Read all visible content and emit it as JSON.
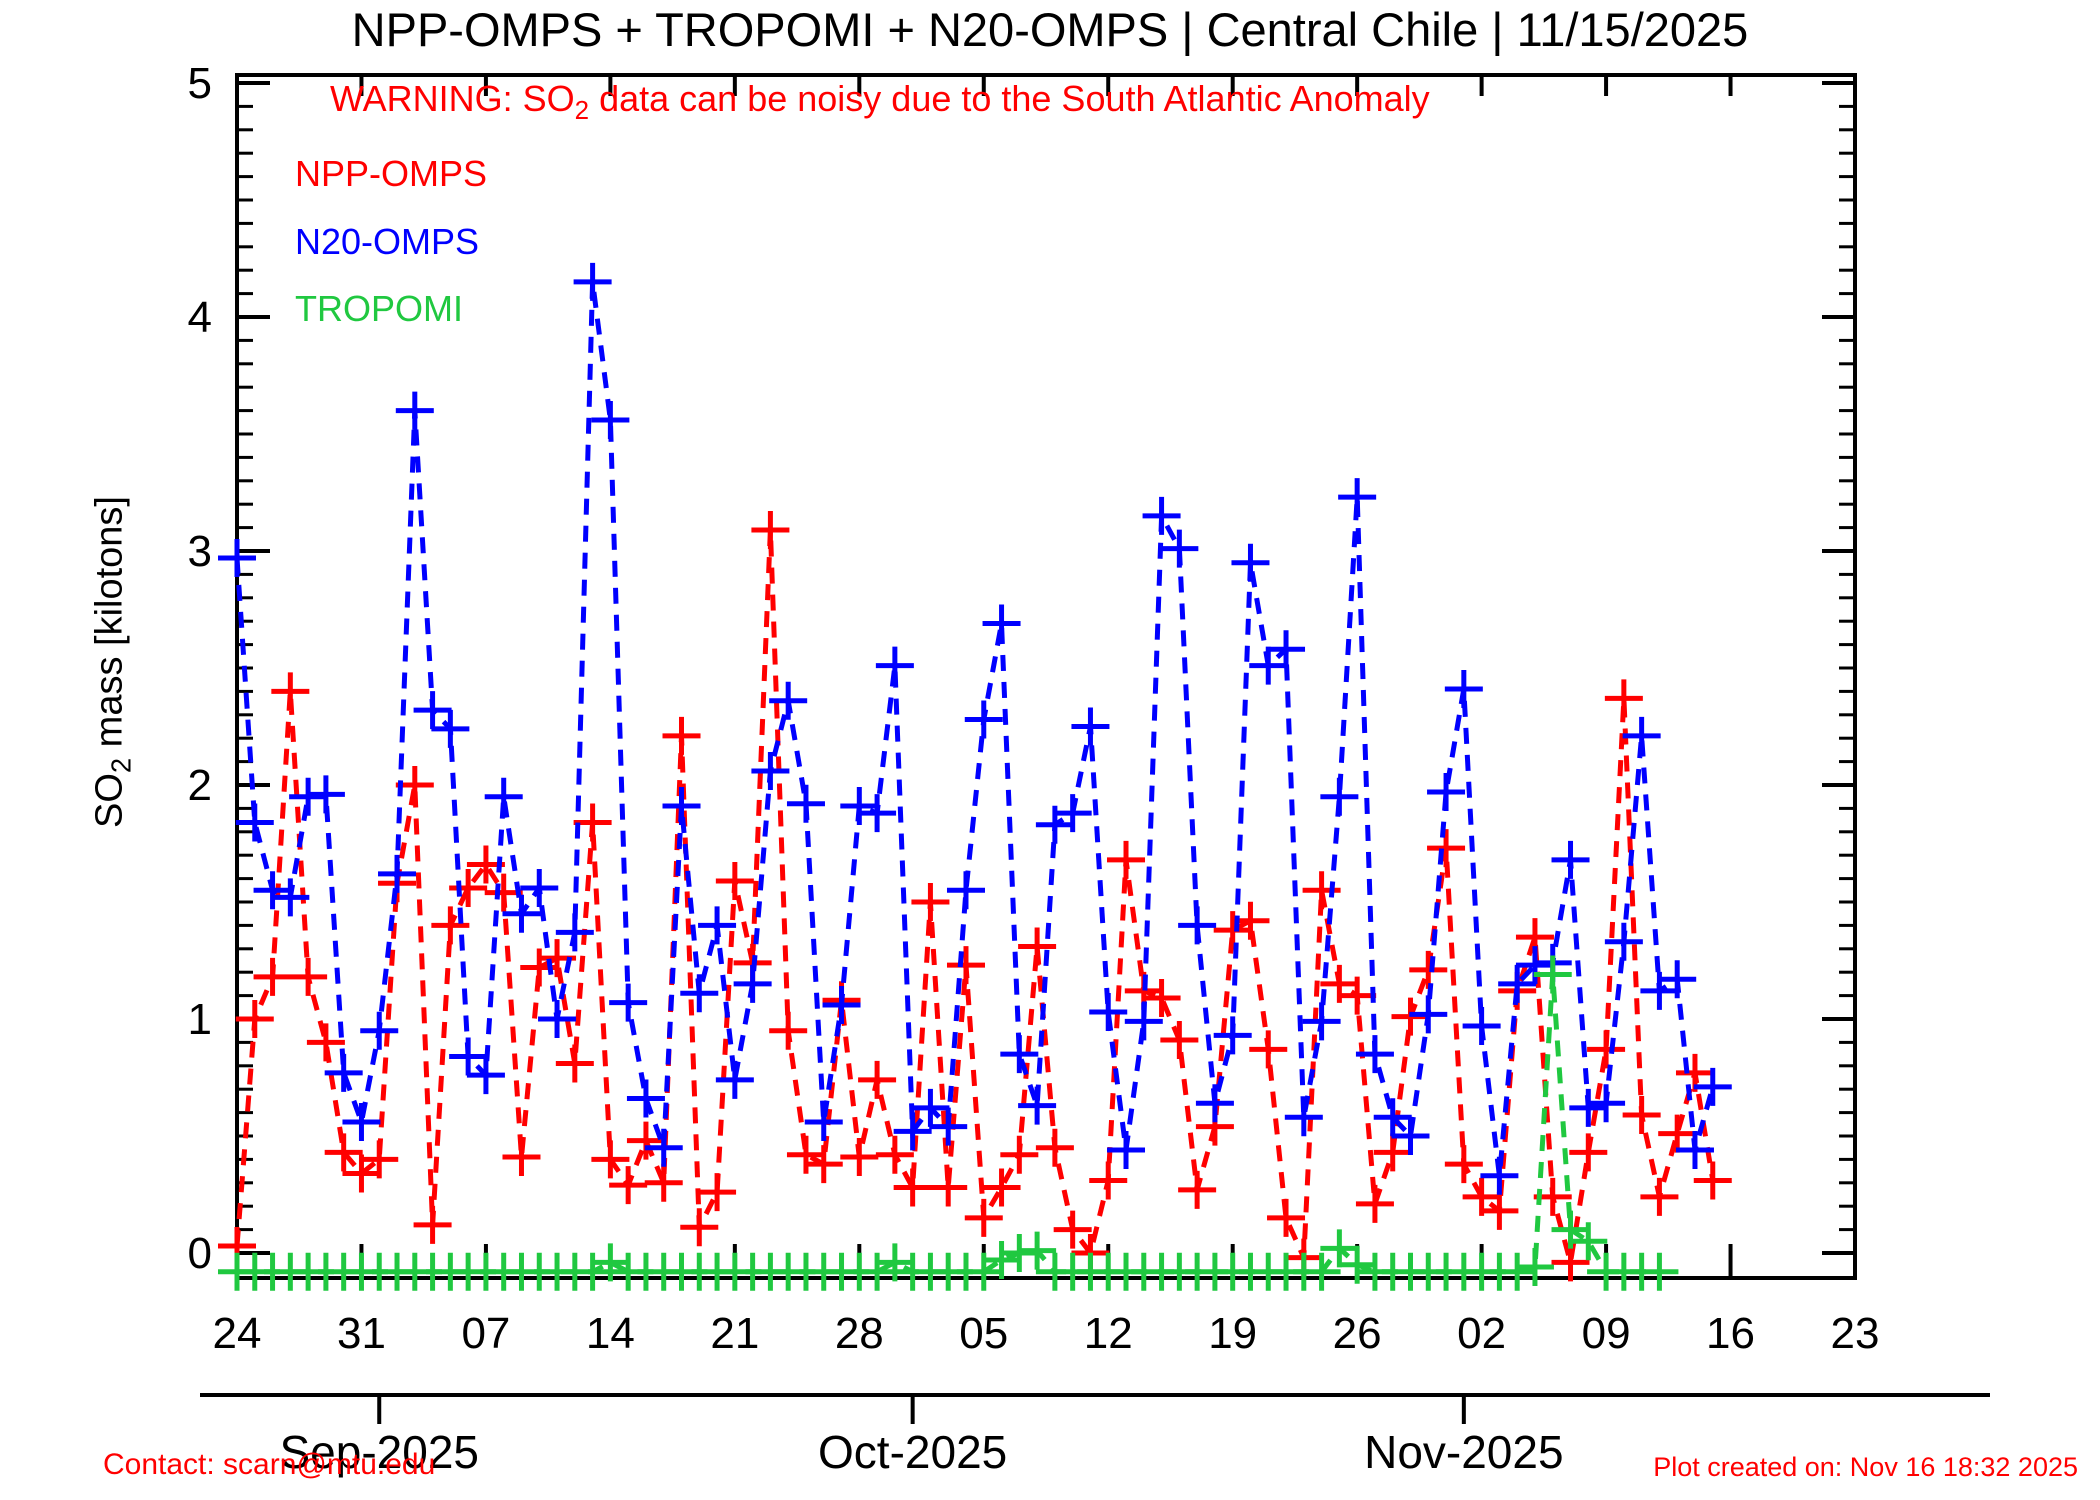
{
  "title": "NPP-OMPS + TROPOMI + N20-OMPS | Central Chile | 11/15/2025",
  "warning": {
    "pre": "WARNING: SO",
    "sub": "2",
    "post": " data can be noisy due to the South Atlantic Anomaly",
    "color": "#FF0000"
  },
  "legend": {
    "npp": {
      "label": "NPP-OMPS",
      "color": "#FF0000"
    },
    "n20": {
      "label": "N20-OMPS",
      "color": "#0000FF"
    },
    "tropomi": {
      "label": "TROPOMI",
      "color": "#20C840"
    }
  },
  "y_axis": {
    "label_pre": "SO",
    "label_sub": "2",
    "label_post": " mass [kilotons]",
    "min": 0,
    "max": 5,
    "major_step": 1,
    "minor_step": 0.1,
    "tick_labels": [
      "0",
      "1",
      "2",
      "3",
      "4",
      "5"
    ]
  },
  "x_axis": {
    "total_days": 91,
    "start_date": "2025-08-24",
    "major_ticks": [
      {
        "day": 0,
        "label": "24"
      },
      {
        "day": 7,
        "label": "31"
      },
      {
        "day": 14,
        "label": "07"
      },
      {
        "day": 21,
        "label": "14"
      },
      {
        "day": 28,
        "label": "21"
      },
      {
        "day": 35,
        "label": "28"
      },
      {
        "day": 42,
        "label": "05"
      },
      {
        "day": 49,
        "label": "12"
      },
      {
        "day": 56,
        "label": "19"
      },
      {
        "day": 63,
        "label": "26"
      },
      {
        "day": 70,
        "label": "02"
      },
      {
        "day": 77,
        "label": "09"
      },
      {
        "day": 84,
        "label": "16"
      },
      {
        "day": 91,
        "label": "23"
      }
    ],
    "month_ticks": [
      {
        "day": 8,
        "label": "Sep-2025"
      },
      {
        "day": 38,
        "label": "Oct-2025"
      },
      {
        "day": 69,
        "label": "Nov-2025"
      }
    ]
  },
  "footer": {
    "contact": "Contact: scarn@mtu.edu",
    "created": "Plot created on: Nov 16 18:32 2025",
    "color": "#FF0000"
  },
  "chart_data": {
    "type": "line",
    "linestyle": "dashed",
    "marker": "plus",
    "xlabel": "",
    "ylabel": "SO2 mass [kilotons]",
    "ylim": [
      -0.11,
      5.03
    ],
    "x_unit": "days since 2025-08-24",
    "legend_position": "top-left-inside",
    "grid": false,
    "series": [
      {
        "name": "NPP-OMPS",
        "color": "#FF0000",
        "start_day": 0,
        "values": [
          0.03,
          1.0,
          1.18,
          2.4,
          1.18,
          0.9,
          0.43,
          0.34,
          0.4,
          1.58,
          2.0,
          0.12,
          1.4,
          1.56,
          1.66,
          1.54,
          0.41,
          1.22,
          1.26,
          0.81,
          1.84,
          0.4,
          0.29,
          0.48,
          0.3,
          2.21,
          0.11,
          0.26,
          1.59,
          1.24,
          3.09,
          0.95,
          0.42,
          0.38,
          1.08,
          0.41,
          0.74,
          0.42,
          0.28,
          1.5,
          0.28,
          1.23,
          0.15,
          0.28,
          0.42,
          1.31,
          0.45,
          0.1,
          0.0,
          0.31,
          1.68,
          1.12,
          1.09,
          0.91,
          0.27,
          0.54,
          1.38,
          1.42,
          0.87,
          0.15,
          -0.02,
          1.55,
          1.15,
          1.1,
          0.21,
          0.43,
          1.01,
          1.21,
          1.73,
          0.38,
          0.24,
          0.18,
          1.12,
          1.35,
          0.24,
          -0.04,
          0.43,
          0.87,
          2.37,
          0.59,
          0.24,
          0.51,
          0.77,
          0.31
        ]
      },
      {
        "name": "N20-OMPS",
        "color": "#0000FF",
        "start_day": 0,
        "values": [
          2.97,
          1.84,
          1.55,
          1.52,
          1.95,
          1.96,
          0.77,
          0.56,
          0.95,
          1.62,
          3.6,
          2.32,
          2.24,
          0.84,
          0.76,
          1.95,
          1.45,
          1.56,
          1.0,
          1.37,
          4.15,
          3.56,
          1.07,
          0.66,
          0.45,
          1.91,
          1.11,
          1.4,
          0.74,
          1.15,
          2.06,
          2.36,
          1.92,
          0.56,
          1.06,
          1.91,
          1.88,
          2.51,
          0.52,
          0.62,
          0.54,
          1.55,
          2.28,
          2.69,
          0.85,
          0.63,
          1.83,
          1.88,
          2.25,
          1.03,
          0.44,
          0.99,
          3.15,
          3.01,
          1.4,
          0.64,
          0.93,
          2.95,
          2.51,
          2.58,
          0.58,
          0.99,
          1.95,
          3.23,
          0.85,
          0.58,
          0.5,
          1.02,
          1.97,
          2.41,
          0.97,
          0.33,
          1.15,
          1.23,
          1.24,
          1.68,
          0.62,
          0.64,
          1.33,
          2.21,
          1.12,
          1.17,
          0.44,
          0.71
        ]
      },
      {
        "name": "TROPOMI",
        "color": "#20C840",
        "start_day": 0,
        "values": [
          -0.08,
          -0.08,
          -0.08,
          -0.08,
          -0.08,
          -0.08,
          -0.08,
          -0.08,
          -0.08,
          -0.08,
          -0.08,
          -0.08,
          -0.08,
          -0.08,
          -0.08,
          -0.08,
          -0.08,
          -0.08,
          -0.08,
          -0.08,
          -0.08,
          -0.04,
          -0.08,
          -0.08,
          -0.08,
          -0.08,
          -0.08,
          -0.08,
          -0.08,
          -0.08,
          -0.08,
          -0.08,
          -0.08,
          -0.08,
          -0.08,
          -0.08,
          -0.08,
          -0.04,
          -0.08,
          -0.08,
          -0.08,
          -0.08,
          -0.08,
          -0.03,
          0.0,
          0.01,
          -0.08,
          -0.08,
          -0.08,
          -0.08,
          -0.08,
          -0.08,
          -0.08,
          -0.08,
          -0.08,
          -0.08,
          -0.08,
          -0.08,
          -0.08,
          -0.08,
          -0.08,
          -0.08,
          0.02,
          -0.05,
          -0.08,
          -0.08,
          -0.08,
          -0.08,
          -0.08,
          -0.08,
          -0.08,
          -0.08,
          -0.08,
          -0.06,
          1.19,
          0.1,
          0.05,
          -0.08,
          -0.08,
          -0.08,
          -0.08
        ]
      }
    ]
  }
}
